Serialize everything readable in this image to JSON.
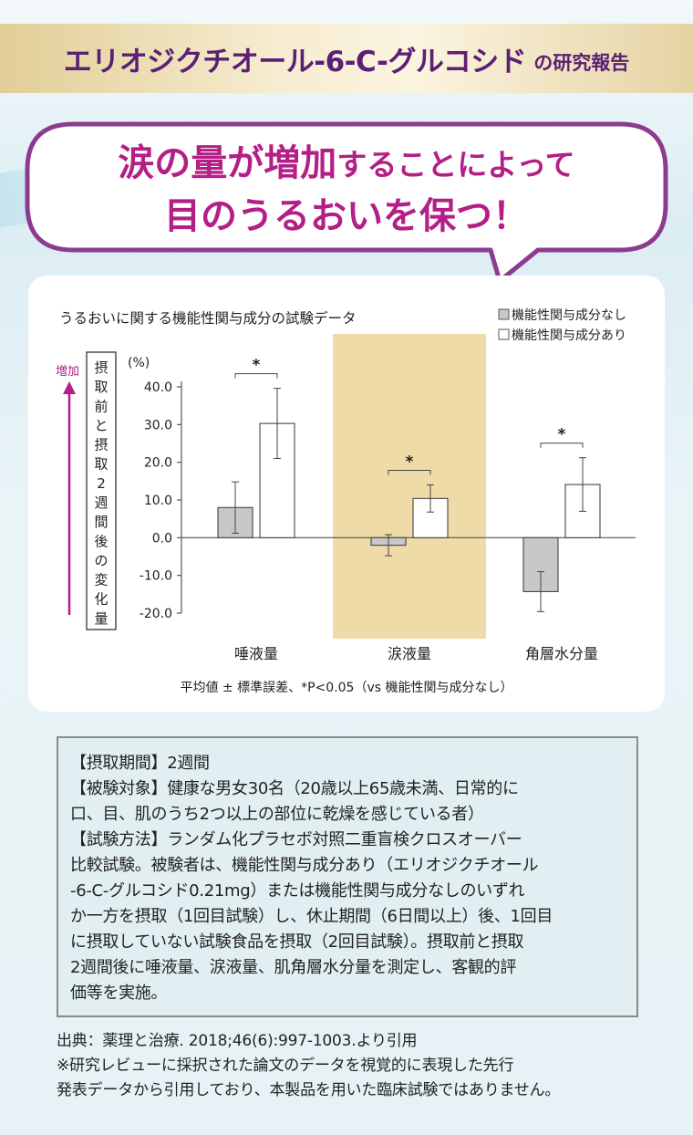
{
  "banner": {
    "main": "エリオジクチオール-6-C-グルコシド",
    "sub": "の研究報告"
  },
  "headline": {
    "line1_strong": "涙の量が増加",
    "line1_rest": "することによって",
    "line2": "目のうるおいを保つ！"
  },
  "colors": {
    "purple": "#5b1f73",
    "magenta": "#b51e87",
    "highlight": "#e8cf8a",
    "bar_gray": "#c8c8c8"
  },
  "chart_data": {
    "type": "bar",
    "title": "うるおいに関する機能性関与成分の試験データ",
    "unit_label": "(%)",
    "ylabel": "摂取前と摂取2週間後の変化量",
    "increase_label": "増加",
    "yticks": [
      "40.0",
      "30.0",
      "20.0",
      "10.0",
      "0.0",
      "-10.0",
      "-20.0"
    ],
    "ylim": [
      -20,
      40
    ],
    "categories": [
      "唾液量",
      "涙液量",
      "角層水分量"
    ],
    "highlighted_category": "涙液量",
    "series": [
      {
        "name": "機能性関与成分なし",
        "values": [
          8.0,
          -2.0,
          -14.3
        ],
        "errors": [
          6.8,
          2.8,
          5.3
        ]
      },
      {
        "name": "機能性関与成分あり",
        "values": [
          30.3,
          10.4,
          14.1
        ],
        "errors": [
          9.3,
          3.6,
          7.1
        ]
      }
    ],
    "significance": [
      "*",
      "*",
      "*"
    ],
    "legend_position": "top-right",
    "note": "平均値 ± 標準誤差、*P<0.05（vs 機能性関与成分なし）"
  },
  "study": {
    "lines": [
      "【摂取期間】2週間",
      "【被験対象】健康な男女30名（20歳以上65歳未満、日常的に",
      "口、目、肌のうち2つ以上の部位に乾燥を感じている者）",
      "【試験方法】ランダム化プラセボ対照二重盲検クロスオーバー",
      "比較試験。被験者は、機能性関与成分あり（エリオジクチオール",
      "-6-C-グルコシド0.21mg）または機能性関与成分なしのいずれ",
      "か一方を摂取（1回目試験）し、休止期間（6日間以上）後、1回目",
      "に摂取していない試験食品を摂取（2回目試験）。摂取前と摂取",
      "2週間後に唾液量、涙液量、肌角層水分量を測定し、客観的評",
      "価等を実施。"
    ]
  },
  "footer": {
    "lines": [
      "出典：薬理と治療. 2018;46(6):997-1003.より引用",
      "※研究レビューに採択された論文のデータを視覚的に表現した先行",
      "発表データから引用しており、本製品を用いた臨床試験ではありません。"
    ]
  }
}
